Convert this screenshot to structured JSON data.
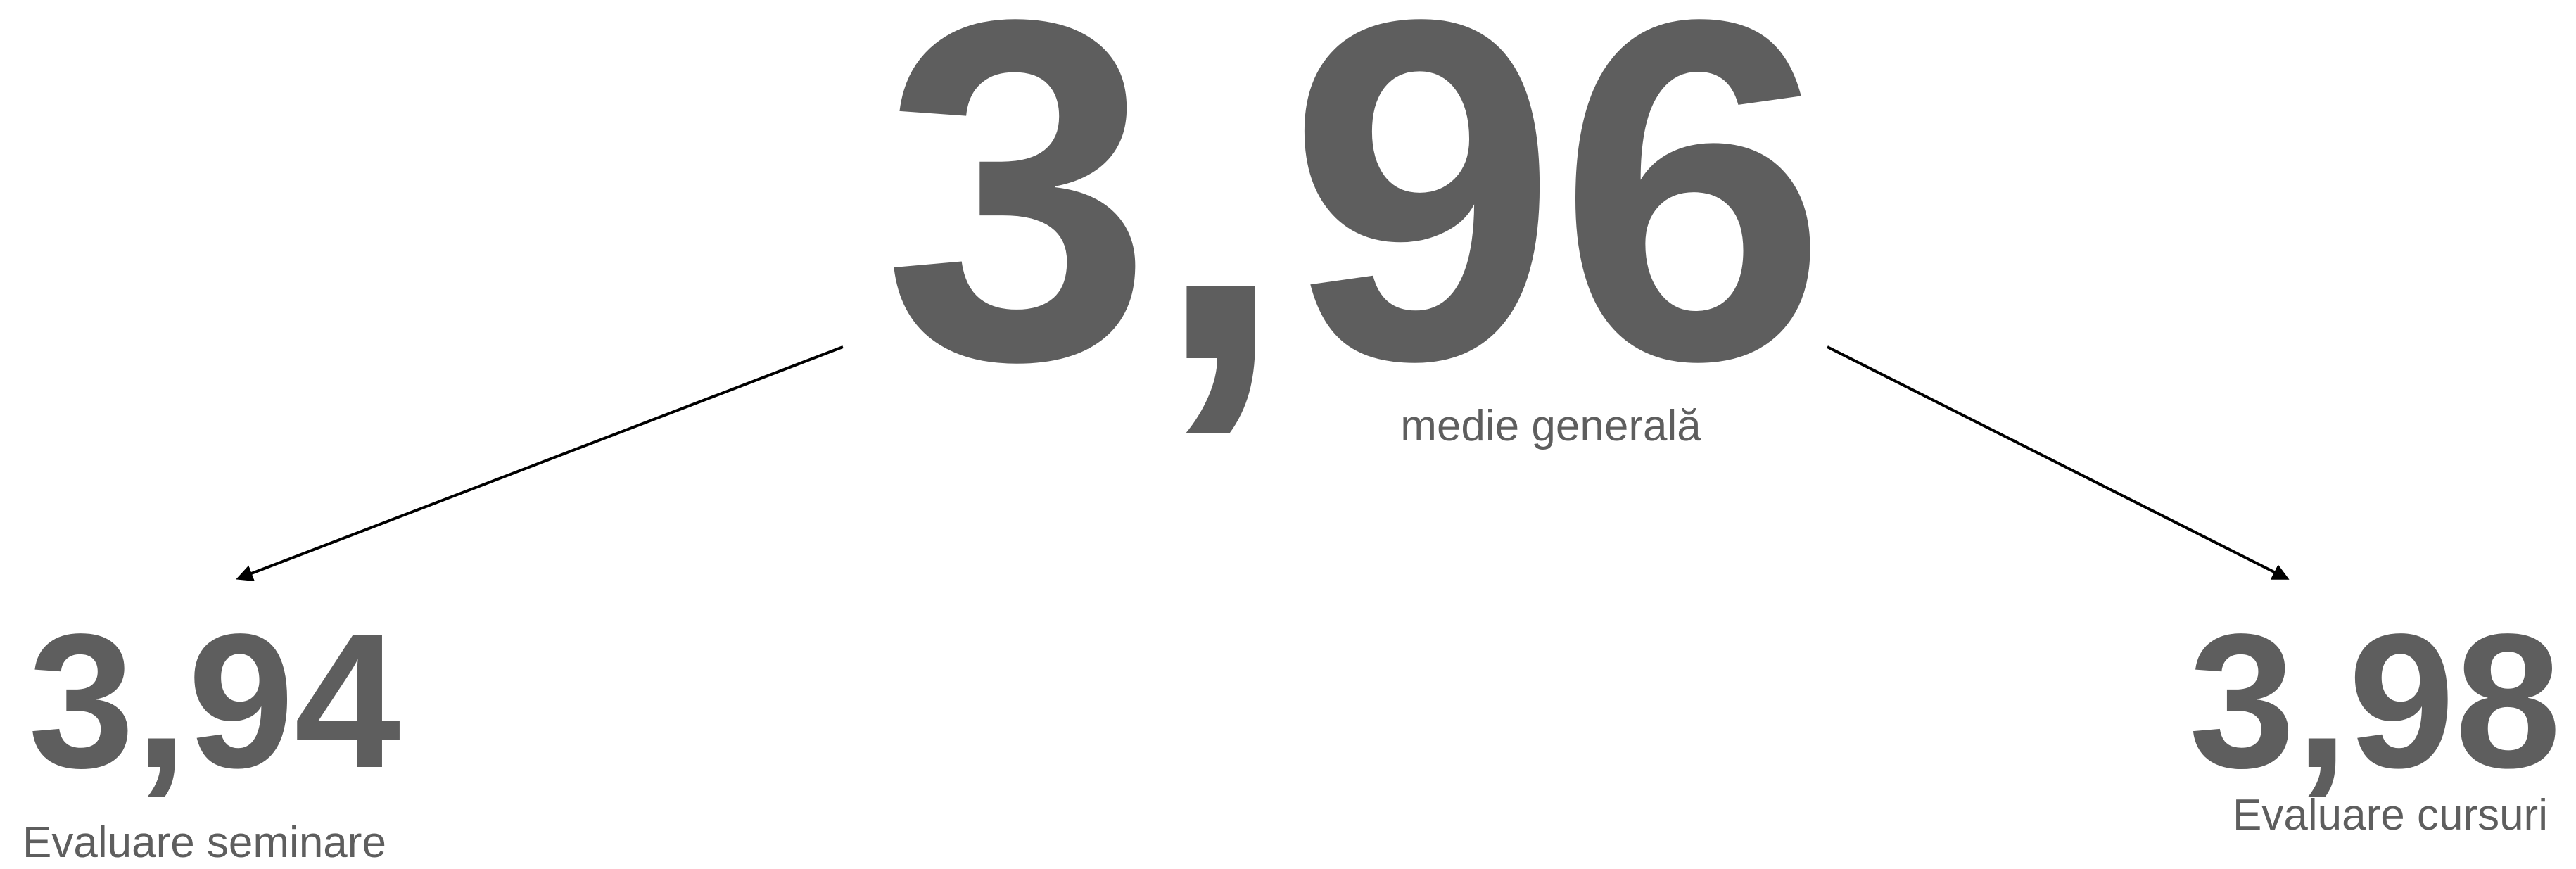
{
  "main": {
    "value": "3,96",
    "label": "medie generală"
  },
  "left": {
    "value": "3,94",
    "label": "Evaluare seminare"
  },
  "right": {
    "value": "3,98",
    "label": "Evaluare cursuri"
  }
}
